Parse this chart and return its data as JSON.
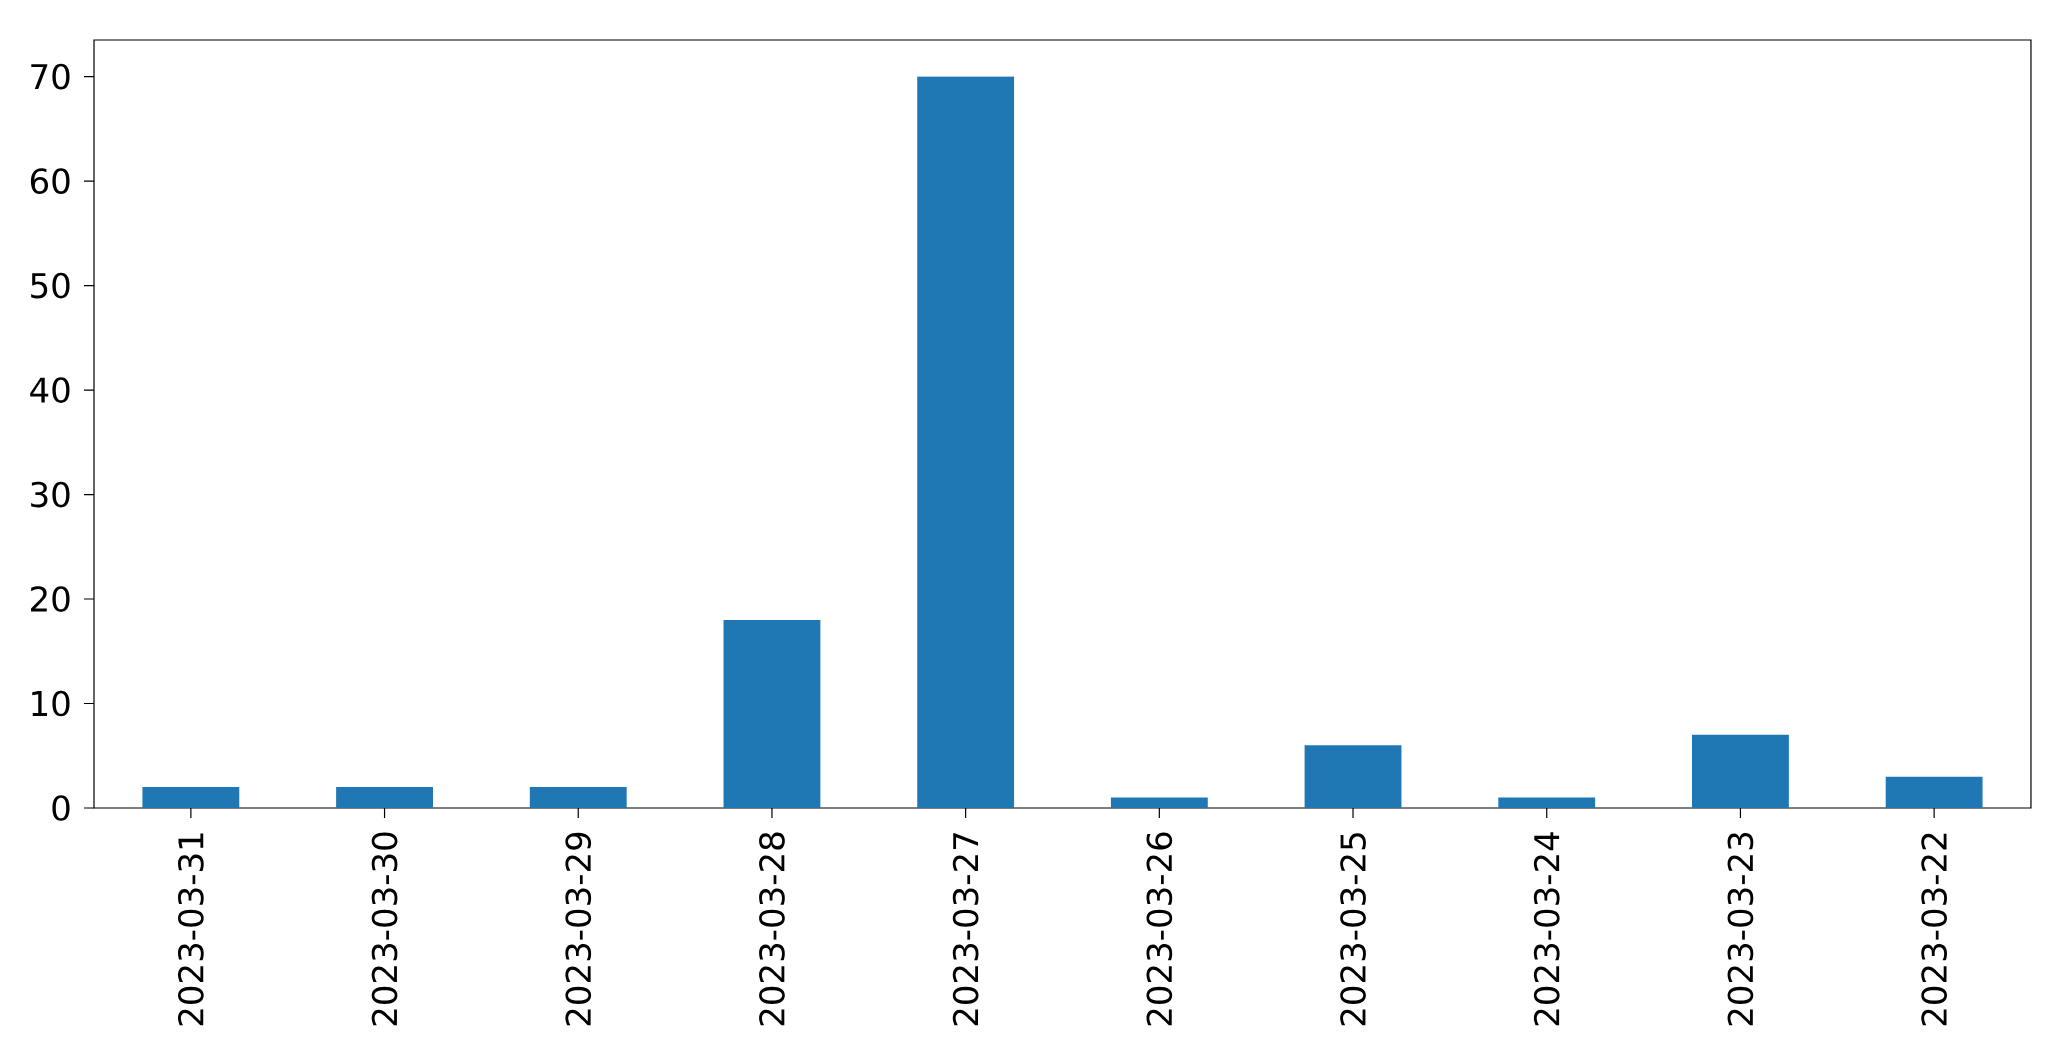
{
  "chart_data": {
    "type": "bar",
    "categories": [
      "2023-03-31",
      "2023-03-30",
      "2023-03-29",
      "2023-03-28",
      "2023-03-27",
      "2023-03-26",
      "2023-03-25",
      "2023-03-24",
      "2023-03-23",
      "2023-03-22"
    ],
    "values": [
      2,
      2,
      2,
      18,
      70,
      1,
      6,
      1,
      7,
      3
    ],
    "color": "#1f77b4",
    "ylim": [
      0,
      73.5
    ],
    "yticks": [
      0,
      10,
      20,
      30,
      40,
      50,
      60,
      70
    ],
    "grid": false
  }
}
